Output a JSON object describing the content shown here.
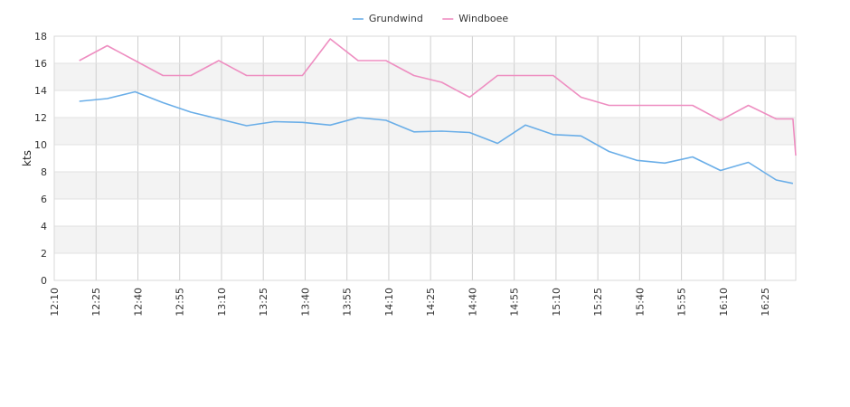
{
  "chart_data": {
    "type": "line",
    "title": "",
    "xlabel": "",
    "ylabel": "kts",
    "ylim": [
      0,
      18
    ],
    "y_ticks": [
      "0",
      "2",
      "4",
      "6",
      "8",
      "10",
      "12",
      "14",
      "16",
      "18"
    ],
    "x_ticks": [
      "12:10",
      "12:25",
      "12:40",
      "12:55",
      "13:10",
      "13:25",
      "13:40",
      "13:55",
      "14:10",
      "14:25",
      "14:40",
      "14:55",
      "15:10",
      "15:25",
      "15:40",
      "15:55",
      "16:10",
      "16:25"
    ],
    "xlim": [
      "12:10",
      "16:36"
    ],
    "grid": true,
    "banded_background": true,
    "legend_position": "top-center",
    "series": [
      {
        "name": "Grundwind",
        "color": "#6aaee8",
        "points": [
          [
            "12:19",
            13.2
          ],
          [
            "12:29",
            13.4
          ],
          [
            "12:39",
            13.9
          ],
          [
            "12:49",
            13.1
          ],
          [
            "12:59",
            12.4
          ],
          [
            "13:09",
            11.9
          ],
          [
            "13:19",
            11.4
          ],
          [
            "13:29",
            11.7
          ],
          [
            "13:39",
            11.65
          ],
          [
            "13:49",
            11.45
          ],
          [
            "13:59",
            12.0
          ],
          [
            "14:09",
            11.8
          ],
          [
            "14:19",
            10.95
          ],
          [
            "14:29",
            11.0
          ],
          [
            "14:39",
            10.9
          ],
          [
            "14:49",
            10.1
          ],
          [
            "14:59",
            11.45
          ],
          [
            "15:09",
            10.75
          ],
          [
            "15:19",
            10.65
          ],
          [
            "15:29",
            9.5
          ],
          [
            "15:39",
            8.85
          ],
          [
            "15:49",
            8.65
          ],
          [
            "15:59",
            9.1
          ],
          [
            "16:09",
            8.1
          ],
          [
            "16:19",
            8.7
          ],
          [
            "16:29",
            7.4
          ],
          [
            "16:35",
            7.15
          ]
        ]
      },
      {
        "name": "Windboee",
        "color": "#ee8ec1",
        "points": [
          [
            "12:19",
            16.2
          ],
          [
            "12:29",
            17.3
          ],
          [
            "12:39",
            16.2
          ],
          [
            "12:49",
            15.1
          ],
          [
            "12:59",
            15.1
          ],
          [
            "13:09",
            16.2
          ],
          [
            "13:19",
            15.1
          ],
          [
            "13:29",
            15.1
          ],
          [
            "13:39",
            15.1
          ],
          [
            "13:49",
            17.8
          ],
          [
            "13:59",
            16.2
          ],
          [
            "14:09",
            16.2
          ],
          [
            "14:19",
            15.1
          ],
          [
            "14:29",
            14.6
          ],
          [
            "14:39",
            13.5
          ],
          [
            "14:49",
            15.1
          ],
          [
            "14:59",
            15.1
          ],
          [
            "15:09",
            15.1
          ],
          [
            "15:19",
            13.5
          ],
          [
            "15:29",
            12.9
          ],
          [
            "15:39",
            12.9
          ],
          [
            "15:49",
            12.9
          ],
          [
            "15:59",
            12.9
          ],
          [
            "16:09",
            11.8
          ],
          [
            "16:19",
            12.9
          ],
          [
            "16:29",
            11.9
          ],
          [
            "16:35",
            11.9
          ],
          [
            "16:36",
            9.2
          ]
        ]
      }
    ]
  }
}
